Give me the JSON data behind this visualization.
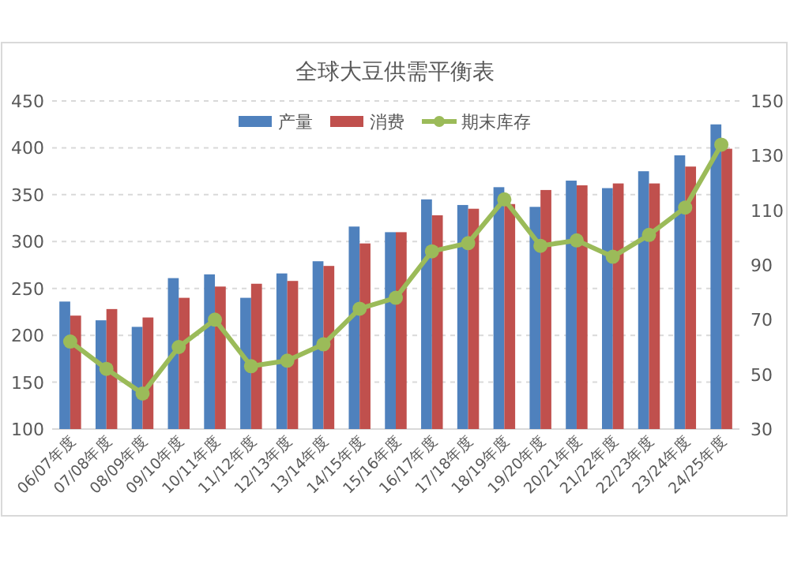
{
  "chart_data": {
    "type": "bar",
    "title": "全球大豆供需平衡表",
    "categories": [
      "06/07年度",
      "07/08年度",
      "08/09年度",
      "09/10年度",
      "10/11年度",
      "11/12年度",
      "12/13年度",
      "13/14年度",
      "14/15年度",
      "15/16年度",
      "16/17年度",
      "17/18年度",
      "18/19年度",
      "19/20年度",
      "20/21年度",
      "21/22年度",
      "22/23年度",
      "23/24年度",
      "24/25年度"
    ],
    "series": [
      {
        "name": "产量",
        "color": "#4f81bd",
        "values": [
          236,
          216,
          209,
          261,
          265,
          240,
          266,
          279,
          316,
          310,
          345,
          339,
          358,
          337,
          365,
          357,
          375,
          392,
          425
        ]
      },
      {
        "name": "消费",
        "color": "#c0504d",
        "values": [
          221,
          228,
          219,
          240,
          252,
          255,
          258,
          274,
          298,
          310,
          328,
          335,
          340,
          355,
          360,
          362,
          362,
          380,
          399
        ]
      },
      {
        "name": "期末库存",
        "type": "line",
        "axis": "y2",
        "color": "#9bbb59",
        "marker": "circle",
        "values": [
          62,
          52,
          43,
          60,
          70,
          53,
          55,
          61,
          74,
          78,
          95,
          98,
          114,
          97,
          99,
          93,
          101,
          111,
          134
        ]
      }
    ],
    "ylim": [
      100,
      450
    ],
    "yticks": [
      100,
      150,
      200,
      250,
      300,
      350,
      400,
      450
    ],
    "y2lim": [
      30,
      150
    ],
    "y2ticks": [
      30,
      50,
      70,
      90,
      110,
      130,
      150
    ],
    "grid": "y",
    "legend": "top"
  }
}
